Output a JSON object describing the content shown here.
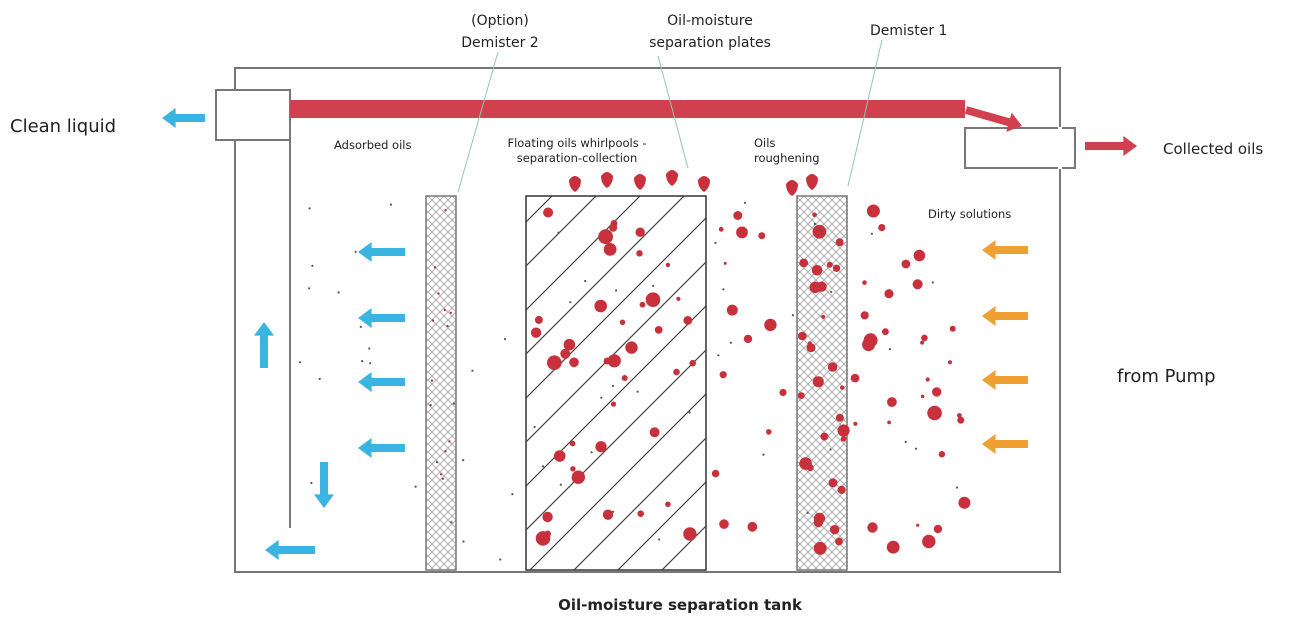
{
  "labels": {
    "demister2": [
      "(Option)",
      "Demister 2"
    ],
    "separation_plates": [
      "Oil-moisture",
      "separation plates"
    ],
    "demister1": "Demister 1",
    "clean_liquid": "Clean liquid",
    "collected_oils": "Collected oils",
    "adsorbed_oils": "Adsorbed oils",
    "floating_oils": [
      "Floating oils whirlpools -",
      "separation-collection"
    ],
    "oils_roughening": [
      "Oils",
      "roughening"
    ],
    "dirty_solutions": "Dirty solutions",
    "from_pump": "from Pump",
    "tank_caption": "Oil-moisture separation tank"
  },
  "colors": {
    "clean_flow": "#3ab4e0",
    "oil_flow": "#d0404e",
    "dirty_flow": "#f0a030",
    "oil_drop": "#c8303c",
    "tank_outline": "#777777"
  }
}
